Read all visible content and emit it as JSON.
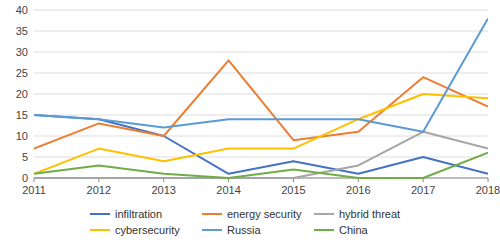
{
  "chart_data": {
    "type": "line",
    "x": [
      2011,
      2012,
      2013,
      2014,
      2015,
      2016,
      2017,
      2018
    ],
    "series": [
      {
        "name": "infiltration",
        "color": "#4472c4",
        "values": [
          15,
          14,
          10,
          1,
          4,
          1,
          5,
          1
        ]
      },
      {
        "name": "energy security",
        "color": "#ed7d31",
        "values": [
          7,
          13,
          10,
          28,
          9,
          11,
          24,
          17
        ]
      },
      {
        "name": "hybrid threat",
        "color": "#a5a5a5",
        "values": [
          0,
          0,
          0,
          0,
          0,
          3,
          11,
          7
        ]
      },
      {
        "name": "cybersecurity",
        "color": "#ffc000",
        "values": [
          1,
          7,
          4,
          7,
          7,
          14,
          20,
          19
        ]
      },
      {
        "name": "Russia",
        "color": "#5b9bd5",
        "values": [
          15,
          14,
          12,
          14,
          14,
          14,
          11,
          38
        ]
      },
      {
        "name": "China",
        "color": "#70ad47",
        "values": [
          1,
          3,
          1,
          0,
          2,
          0,
          0,
          6
        ]
      }
    ],
    "xlim": [
      2011,
      2018
    ],
    "xticks": [
      2011,
      2012,
      2013,
      2014,
      2015,
      2016,
      2017,
      2018
    ],
    "ylim": [
      0,
      40
    ],
    "yticks": [
      0,
      5,
      10,
      15,
      20,
      25,
      30,
      35,
      40
    ],
    "grid": "y",
    "legend": "bottom"
  }
}
